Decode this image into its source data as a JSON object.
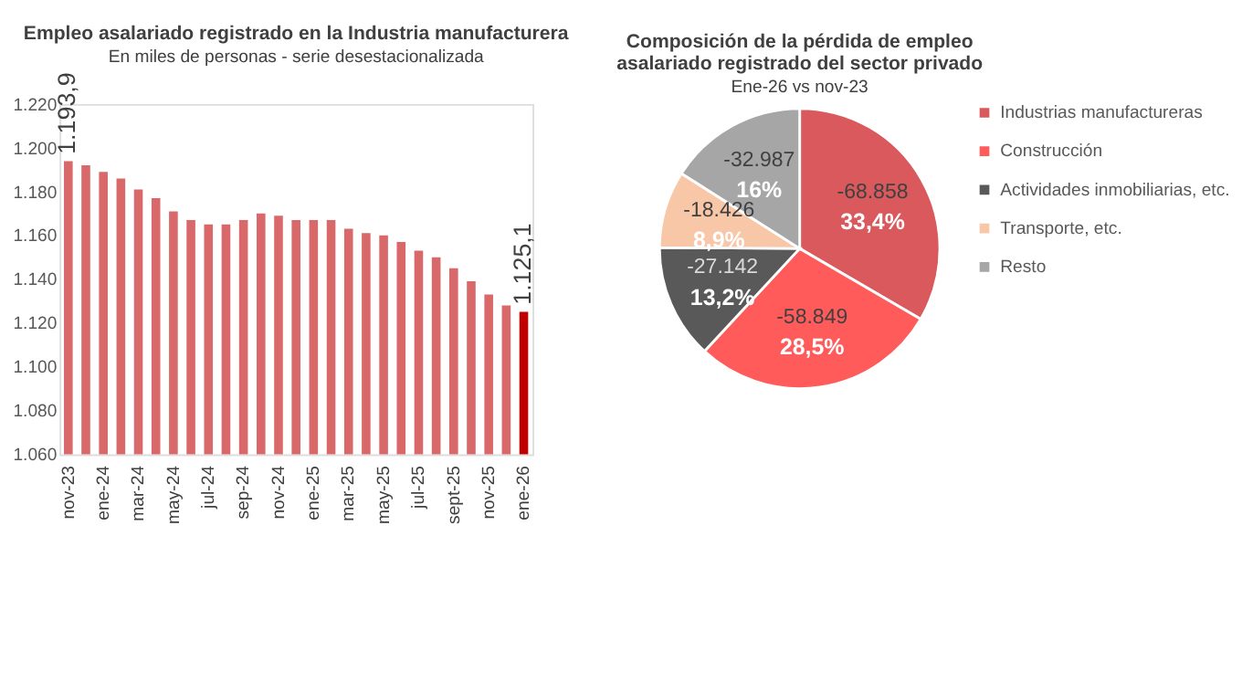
{
  "chart_data": [
    {
      "type": "bar",
      "title": "Empleo asalariado registrado en la Industria manufacturera",
      "subtitle": "En miles de personas - serie desestacionalizada",
      "categories": [
        "nov-23",
        null,
        "ene-24",
        null,
        "mar-24",
        null,
        "may-24",
        null,
        "jul-24",
        null,
        "sep-24",
        null,
        "nov-24",
        null,
        "ene-25",
        null,
        "mar-25",
        null,
        "may-25",
        null,
        "jul-25",
        null,
        "sept-25",
        null,
        "nov-25",
        null,
        "ene-26"
      ],
      "values": [
        1193.9,
        1192,
        1189,
        1186,
        1181,
        1177,
        1171,
        1167,
        1165,
        1165,
        1167,
        1170,
        1169,
        1167,
        1167,
        1167,
        1163,
        1161,
        1160,
        1157,
        1153,
        1150,
        1145,
        1139,
        1133,
        1128,
        1125.1
      ],
      "colors": [
        "#d9686a",
        "#d9686a",
        "#d9686a",
        "#d9686a",
        "#d9686a",
        "#d9686a",
        "#d9686a",
        "#d9686a",
        "#d9686a",
        "#d9686a",
        "#d9686a",
        "#d9686a",
        "#d9686a",
        "#d9686a",
        "#d9686a",
        "#d9686a",
        "#d9686a",
        "#d9686a",
        "#d9686a",
        "#d9686a",
        "#d9686a",
        "#d9686a",
        "#d9686a",
        "#d9686a",
        "#d9686a",
        "#d9686a",
        "#c00000"
      ],
      "value_labels": [
        "1.193,9",
        null,
        null,
        null,
        null,
        null,
        null,
        null,
        null,
        null,
        null,
        null,
        null,
        null,
        null,
        null,
        null,
        null,
        null,
        null,
        null,
        null,
        null,
        null,
        null,
        null,
        "1.125,1"
      ],
      "ylim": [
        1060,
        1220
      ],
      "yticks": [
        {
          "value": 1060,
          "label": "1.060"
        },
        {
          "value": 1080,
          "label": "1.080"
        },
        {
          "value": 1100,
          "label": "1.100"
        },
        {
          "value": 1120,
          "label": "1.120"
        },
        {
          "value": 1140,
          "label": "1.140"
        },
        {
          "value": 1160,
          "label": "1.160"
        },
        {
          "value": 1180,
          "label": "1.180"
        },
        {
          "value": 1200,
          "label": "1.200"
        },
        {
          "value": 1220,
          "label": "1.220"
        }
      ]
    },
    {
      "type": "pie",
      "title": "Composición de la pérdida de empleo asalariado registrado del sector privado",
      "subtitle": "Ene-26 vs nov-23",
      "categories": [
        "Industrias manufactureras",
        "Construcción",
        "Actividades inmobiliarias, etc.",
        "Transporte, etc.",
        "Resto"
      ],
      "values": [
        33.4,
        28.5,
        13.2,
        8.9,
        16
      ],
      "value_labels": [
        "-68.858\n33,4%",
        "-58.849\n28,5%",
        "-27.142\n13,2%",
        "-18.426\n8,9%",
        "-32.987\n16%"
      ],
      "colors": [
        "#d9595c",
        "#ff5b5b",
        "#595959",
        "#f8c7a8",
        "#a6a6a6"
      ],
      "legend": "right"
    }
  ]
}
